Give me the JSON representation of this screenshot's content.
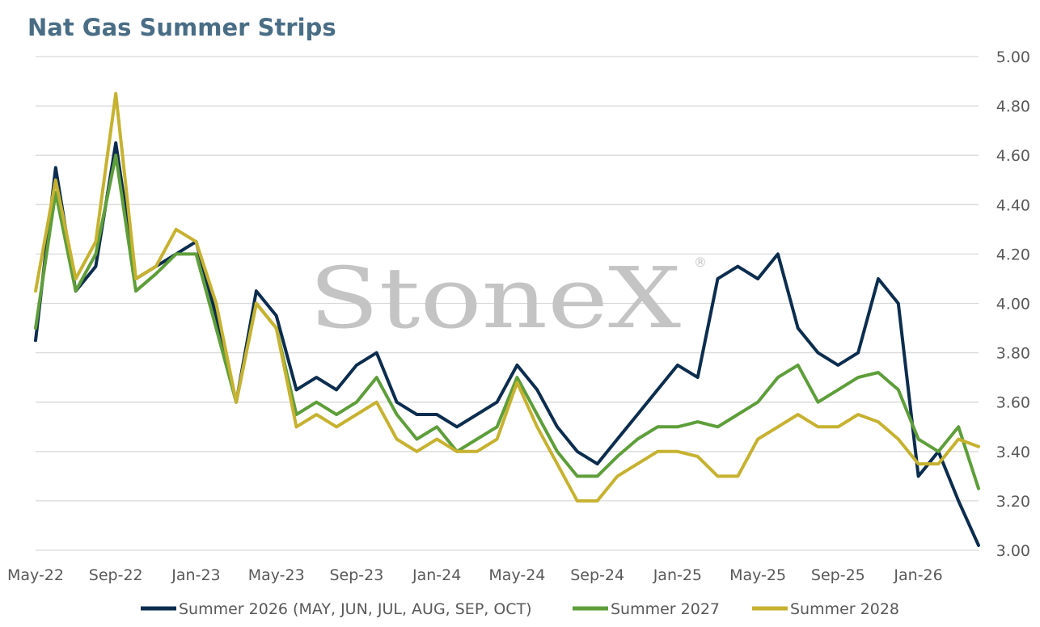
{
  "chart_data": {
    "type": "line",
    "title": "Nat Gas Summer Strips",
    "watermark": "StoneX",
    "watermark_mark": "®",
    "xlabel": "",
    "ylabel": "",
    "ylim": [
      3.0,
      5.0
    ],
    "y_ticks": [
      "3.00",
      "3.20",
      "3.40",
      "3.60",
      "3.80",
      "4.00",
      "4.20",
      "4.40",
      "4.60",
      "4.80",
      "5.00"
    ],
    "x_ticks": [
      "May-22",
      "Sep-22",
      "Jan-23",
      "May-23",
      "Sep-23",
      "Jan-24",
      "May-24",
      "Sep-24",
      "Jan-25",
      "May-25",
      "Sep-25",
      "Jan-26"
    ],
    "grid": "horizontal",
    "legend_position": "bottom",
    "x": [
      "May-22",
      "Jun-22",
      "Jul-22",
      "Aug-22",
      "Sep-22",
      "Oct-22",
      "Nov-22",
      "Dec-22",
      "Jan-23",
      "Feb-23",
      "Mar-23",
      "Apr-23",
      "May-23",
      "Jun-23",
      "Jul-23",
      "Aug-23",
      "Sep-23",
      "Oct-23",
      "Nov-23",
      "Dec-23",
      "Jan-24",
      "Feb-24",
      "Mar-24",
      "Apr-24",
      "May-24",
      "Jun-24",
      "Jul-24",
      "Aug-24",
      "Sep-24",
      "Oct-24",
      "Nov-24",
      "Dec-24",
      "Jan-25",
      "Feb-25",
      "Mar-25",
      "Apr-25",
      "May-25",
      "Jun-25",
      "Jul-25",
      "Aug-25",
      "Sep-25",
      "Oct-25",
      "Nov-25",
      "Dec-25",
      "Jan-26",
      "Feb-26",
      "Mar-26",
      "Apr-26"
    ],
    "series": [
      {
        "name": "Summer 2026 (MAY, JUN, JUL, AUG, SEP, OCT)",
        "color": "#0c2d4e",
        "values": [
          3.85,
          4.55,
          4.05,
          4.15,
          4.65,
          4.1,
          4.15,
          4.2,
          4.25,
          3.95,
          3.6,
          4.05,
          3.95,
          3.65,
          3.7,
          3.65,
          3.75,
          3.8,
          3.6,
          3.55,
          3.55,
          3.5,
          3.55,
          3.6,
          3.75,
          3.65,
          3.5,
          3.4,
          3.35,
          3.45,
          3.55,
          3.65,
          3.75,
          3.7,
          4.1,
          4.15,
          4.1,
          4.2,
          3.9,
          3.8,
          3.75,
          3.8,
          4.1,
          4.0,
          3.3,
          3.4,
          3.2,
          3.02
        ]
      },
      {
        "name": "Summer 2027",
        "color": "#5e9e3a",
        "values": [
          3.9,
          4.45,
          4.05,
          4.2,
          4.6,
          4.05,
          4.12,
          4.2,
          4.2,
          3.9,
          3.6,
          4.0,
          3.9,
          3.55,
          3.6,
          3.55,
          3.6,
          3.7,
          3.55,
          3.45,
          3.5,
          3.4,
          3.45,
          3.5,
          3.7,
          3.55,
          3.4,
          3.3,
          3.3,
          3.38,
          3.45,
          3.5,
          3.5,
          3.52,
          3.5,
          3.55,
          3.6,
          3.7,
          3.75,
          3.6,
          3.65,
          3.7,
          3.72,
          3.65,
          3.45,
          3.4,
          3.5,
          3.25
        ]
      },
      {
        "name": "Summer 2028",
        "color": "#c6b230",
        "values": [
          4.05,
          4.5,
          4.1,
          4.25,
          4.85,
          4.1,
          4.15,
          4.3,
          4.25,
          4.0,
          3.6,
          4.0,
          3.9,
          3.5,
          3.55,
          3.5,
          3.55,
          3.6,
          3.45,
          3.4,
          3.45,
          3.4,
          3.4,
          3.45,
          3.68,
          3.5,
          3.35,
          3.2,
          3.2,
          3.3,
          3.35,
          3.4,
          3.4,
          3.38,
          3.3,
          3.3,
          3.45,
          3.5,
          3.55,
          3.5,
          3.5,
          3.55,
          3.52,
          3.45,
          3.35,
          3.35,
          3.45,
          3.42
        ]
      }
    ]
  }
}
